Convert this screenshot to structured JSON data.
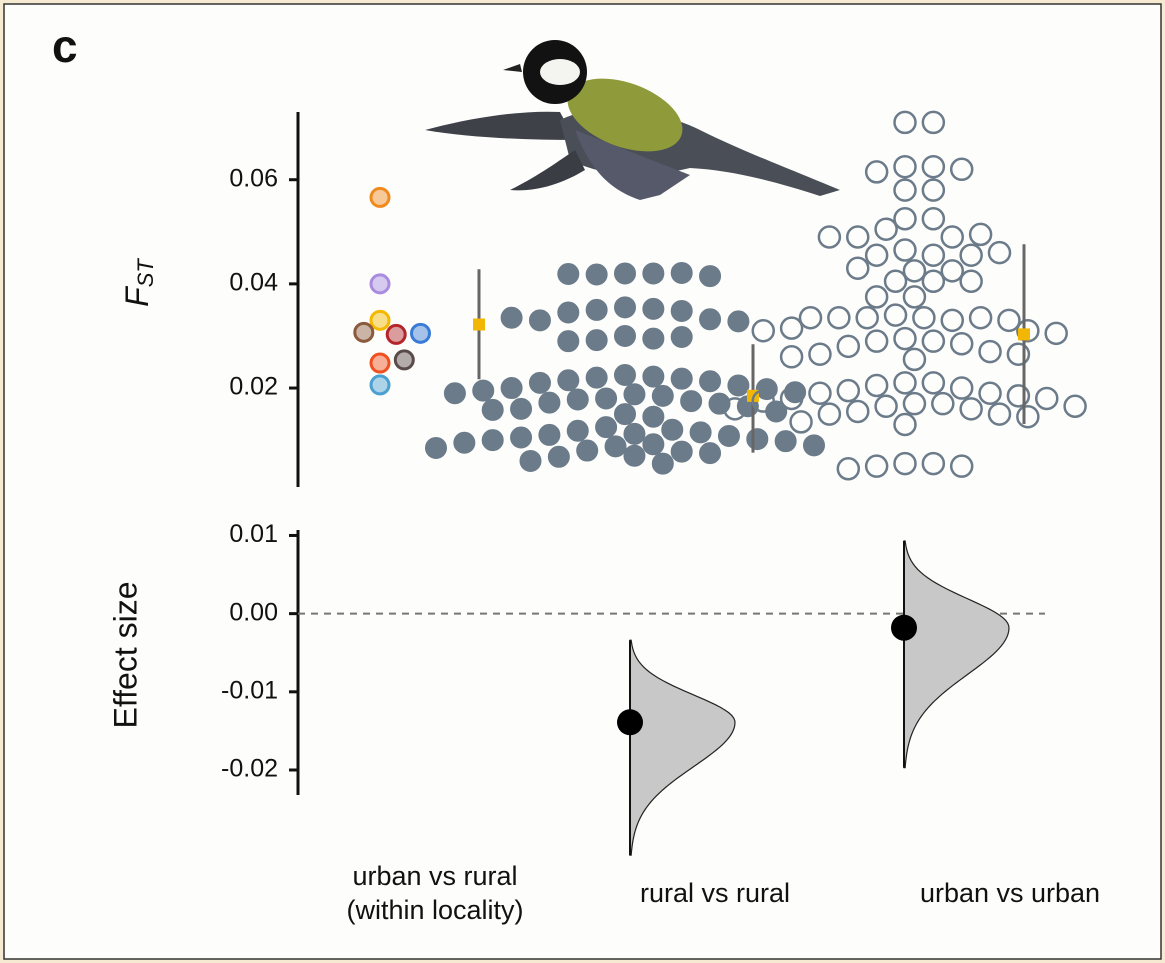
{
  "panel_label": "c",
  "chart_data": [
    {
      "type": "swarm",
      "y_label": {
        "main": "F",
        "sub": "ST"
      },
      "ylim": [
        0.001,
        0.073
      ],
      "yticks": [
        {
          "value": 0.02,
          "label": "0.02"
        },
        {
          "value": 0.04,
          "label": "0.04"
        },
        {
          "value": 0.06,
          "label": "0.06"
        }
      ],
      "series": [
        {
          "colors": [
            "#f08a1e",
            "#a98ce0",
            "#f5b800",
            "#b2252a",
            "#8b5a3c",
            "#3a7bd5",
            "#f0501e",
            "#5a4a4a",
            "#4aa0d0"
          ],
          "style": "open-colored",
          "values": [
            0.0566,
            0.04,
            0.033,
            0.0303,
            0.0307,
            0.0305,
            0.0248,
            0.0254,
            0.0206
          ]
        },
        {
          "color": "#6b7b8a",
          "style": "filled",
          "values": [
            0.042,
            0.042,
            0.0418,
            0.0421,
            0.0419,
            0.0415,
            0.0355,
            0.0352,
            0.035,
            0.0348,
            0.0345,
            0.0332,
            0.033,
            0.0328,
            0.0335,
            0.03,
            0.0295,
            0.0292,
            0.0298,
            0.029,
            0.0225,
            0.0222,
            0.022,
            0.0218,
            0.0215,
            0.0213,
            0.021,
            0.0205,
            0.02,
            0.0198,
            0.0195,
            0.0192,
            0.019,
            0.0188,
            0.0185,
            0.018,
            0.0178,
            0.0175,
            0.0172,
            0.017,
            0.0165,
            0.016,
            0.0158,
            0.0155,
            0.015,
            0.0145,
            0.0125,
            0.012,
            0.0118,
            0.0115,
            0.0112,
            0.011,
            0.0108,
            0.0105,
            0.0102,
            0.01,
            0.0098,
            0.0095,
            0.0092,
            0.009,
            0.0088,
            0.0085,
            0.008,
            0.0078,
            0.0075,
            0.007,
            0.0068,
            0.006,
            0.0055
          ]
        },
        {
          "color": "#6b7b8a",
          "style": "open",
          "values": [
            0.071,
            0.071,
            0.0625,
            0.0625,
            0.0615,
            0.062,
            0.058,
            0.058,
            0.0525,
            0.0525,
            0.0505,
            0.049,
            0.049,
            0.0495,
            0.049,
            0.0465,
            0.0455,
            0.0455,
            0.046,
            0.0455,
            0.0425,
            0.0425,
            0.043,
            0.0405,
            0.0405,
            0.0405,
            0.0375,
            0.0375,
            0.034,
            0.0335,
            0.0335,
            0.033,
            0.0335,
            0.0335,
            0.0335,
            0.033,
            0.0315,
            0.031,
            0.031,
            0.0305,
            0.0295,
            0.029,
            0.029,
            0.0285,
            0.028,
            0.027,
            0.0265,
            0.0265,
            0.026,
            0.0255,
            0.021,
            0.021,
            0.0205,
            0.02,
            0.0195,
            0.019,
            0.019,
            0.0185,
            0.018,
            0.018,
            0.0175,
            0.017,
            0.017,
            0.0165,
            0.0165,
            0.016,
            0.016,
            0.0155,
            0.015,
            0.015,
            0.0145,
            0.0135,
            0.013,
            0.0055,
            0.0055,
            0.005,
            0.005,
            0.0045
          ]
        }
      ],
      "summary": {
        "color": "#f2b705",
        "mean": [
          0.0322,
          0.0185,
          0.0303
        ],
        "ci_low": [
          0.0217,
          0.0076,
          0.0131
        ],
        "ci_high": [
          0.0428,
          0.0284,
          0.0476
        ]
      }
    },
    {
      "type": "estimation",
      "y_label": "Effect size",
      "ylim": [
        -0.0232,
        0.0107
      ],
      "yticks": [
        {
          "value": -0.02,
          "label": "-0.02"
        },
        {
          "value": -0.01,
          "label": "-0.01"
        },
        {
          "value": 0,
          "label": "0.00"
        },
        0.01
      ],
      "reference_line": 0,
      "categories": [
        [
          "urban vs rural",
          "(within locality)"
        ],
        [
          "rural vs rural"
        ],
        [
          "urban vs urban"
        ]
      ],
      "effect": [
        null,
        -0.0139,
        -0.0018
      ],
      "dist_range": [
        null,
        [
          -0.0309,
          -0.0034
        ],
        [
          -0.0197,
          0.0093
        ]
      ],
      "color": "#000000",
      "dist_color": "#c8c8c8"
    }
  ]
}
